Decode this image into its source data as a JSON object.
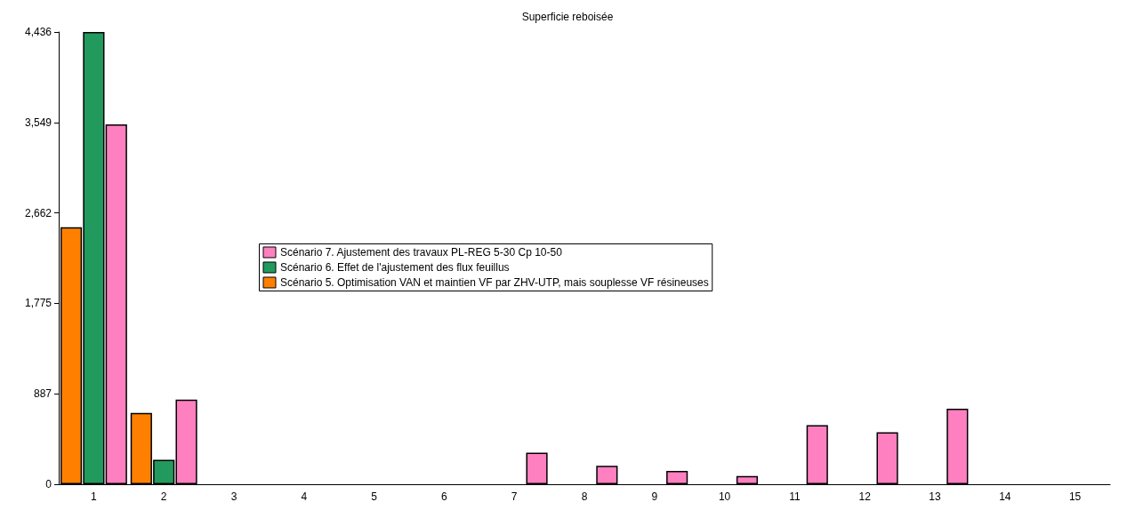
{
  "chart_data": {
    "type": "bar",
    "title": "Superficie reboisée",
    "categories": [
      "1",
      "2",
      "3",
      "4",
      "5",
      "6",
      "7",
      "8",
      "9",
      "10",
      "11",
      "12",
      "13",
      "14",
      "15"
    ],
    "series": [
      {
        "name": "Scénario 5. Optimisation VAN et maintien VF par ZHV-UTP, mais souplesse VF résineuses",
        "color": "#ff8000",
        "values": [
          2520,
          700,
          0,
          0,
          0,
          0,
          0,
          0,
          0,
          0,
          0,
          0,
          0,
          0,
          0
        ]
      },
      {
        "name": "Scénario 6. Effet de l'ajustement des flux feuillus",
        "color": "#229a5e",
        "values": [
          4436,
          240,
          0,
          0,
          0,
          0,
          0,
          0,
          0,
          0,
          0,
          0,
          0,
          0,
          0
        ]
      },
      {
        "name": "Scénario 7. Ajustement des travaux PL-REG 5-30 Cp 10-50",
        "color": "#ff80c0",
        "values": [
          3530,
          830,
          0,
          0,
          0,
          0,
          310,
          180,
          130,
          80,
          580,
          510,
          740,
          0,
          0
        ]
      }
    ],
    "ylim": [
      0,
      4436
    ],
    "yticks": [
      0,
      887,
      {
        "value": 1775,
        "label": "1,775"
      },
      {
        "value": 2662,
        "label": "2,662"
      },
      {
        "value": 3549,
        "label": "3,549"
      },
      {
        "value": 4436,
        "label": "4,436"
      }
    ],
    "grid": false,
    "legend": "center"
  }
}
